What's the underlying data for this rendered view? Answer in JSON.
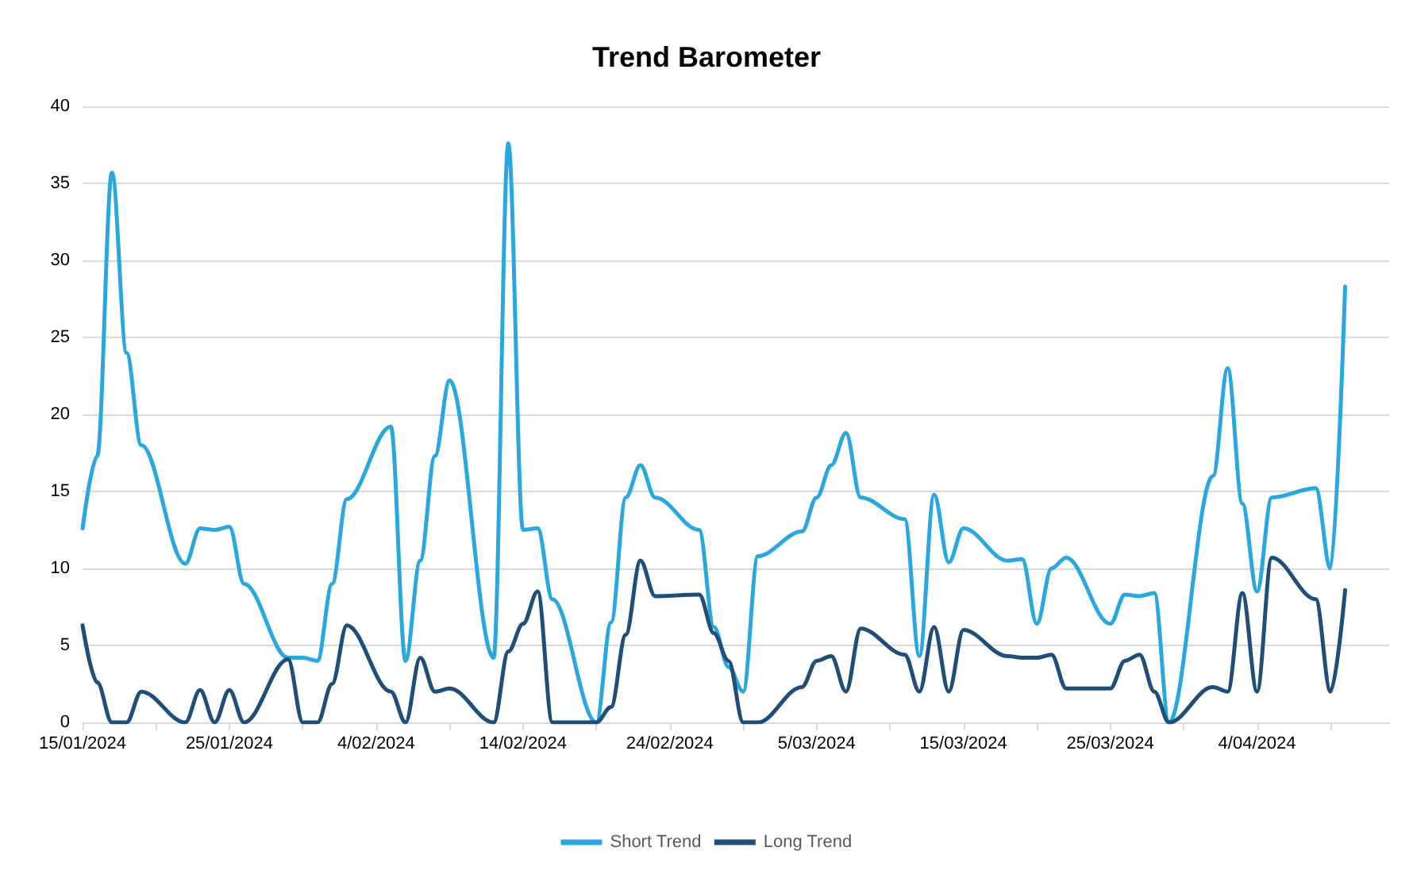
{
  "chart_data": {
    "type": "line",
    "title": "Trend Barometer",
    "x": [
      "2024-01-15",
      "2024-01-16",
      "2024-01-17",
      "2024-01-18",
      "2024-01-19",
      "2024-01-22",
      "2024-01-23",
      "2024-01-24",
      "2024-01-25",
      "2024-01-26",
      "2024-01-29",
      "2024-01-30",
      "2024-01-31",
      "2024-02-01",
      "2024-02-02",
      "2024-02-05",
      "2024-02-06",
      "2024-02-07",
      "2024-02-08",
      "2024-02-09",
      "2024-02-12",
      "2024-02-13",
      "2024-02-14",
      "2024-02-15",
      "2024-02-16",
      "2024-02-19",
      "2024-02-20",
      "2024-02-21",
      "2024-02-22",
      "2024-02-23",
      "2024-02-26",
      "2024-02-27",
      "2024-02-28",
      "2024-02-29",
      "2024-03-01",
      "2024-03-04",
      "2024-03-05",
      "2024-03-06",
      "2024-03-07",
      "2024-03-08",
      "2024-03-11",
      "2024-03-12",
      "2024-03-13",
      "2024-03-14",
      "2024-03-15",
      "2024-03-18",
      "2024-03-19",
      "2024-03-20",
      "2024-03-21",
      "2024-03-22",
      "2024-03-25",
      "2024-03-26",
      "2024-03-27",
      "2024-03-28",
      "2024-03-29",
      "2024-04-01",
      "2024-04-02",
      "2024-04-03",
      "2024-04-04",
      "2024-04-05",
      "2024-04-08",
      "2024-04-09",
      "2024-04-10"
    ],
    "series": [
      {
        "name": "Short Trend",
        "color": "#29a8e0",
        "values": [
          12.6,
          17.3,
          35.7,
          24,
          18,
          10.3,
          12.6,
          12.5,
          12.7,
          9,
          4.2,
          4.2,
          4.0,
          9,
          14.5,
          19.2,
          4.0,
          10.5,
          17.3,
          22.2,
          4.2,
          37.6,
          12.5,
          12.6,
          8,
          0,
          6.5,
          14.6,
          16.7,
          14.6,
          12.5,
          6.2,
          3.6,
          2.0,
          10.8,
          12.4,
          14.6,
          16.7,
          18.8,
          14.6,
          13.2,
          4.3,
          14.8,
          10.4,
          12.6,
          10.5,
          10.6,
          6.4,
          10.0,
          10.7,
          6.4,
          8.3,
          8.2,
          8.4,
          0,
          16,
          23,
          14.2,
          8.5,
          14.6,
          15.2,
          10.0,
          28.3
        ]
      },
      {
        "name": "Long Trend",
        "color": "#1f4e79",
        "values": [
          6.3,
          2.6,
          0,
          0,
          2.0,
          0,
          2.1,
          0,
          2.1,
          0,
          4.1,
          0,
          0,
          2.5,
          6.3,
          2.0,
          0,
          4.2,
          2.0,
          2.2,
          0,
          4.6,
          6.4,
          8.5,
          0,
          0,
          1.0,
          5.7,
          10.5,
          8.2,
          8.3,
          5.8,
          4.0,
          0,
          0,
          2.3,
          4.0,
          4.3,
          2.0,
          6.1,
          4.4,
          2.0,
          6.2,
          2.0,
          6.0,
          4.3,
          4.2,
          4.2,
          4.4,
          2.2,
          2.2,
          4.0,
          4.4,
          2.0,
          0,
          2.3,
          2.0,
          8.4,
          2.0,
          10.7,
          8.0,
          2.0,
          8.6
        ]
      }
    ],
    "xlim": [
      "2024-01-15",
      "2024-04-13"
    ],
    "xticks": [
      {
        "value": "2024-01-15",
        "label": "15/01/2024"
      },
      {
        "value": "2024-01-20",
        "label": null
      },
      {
        "value": "2024-01-25",
        "label": "25/01/2024"
      },
      {
        "value": "2024-01-30",
        "label": null
      },
      {
        "value": "2024-02-04",
        "label": "4/02/2024"
      },
      {
        "value": "2024-02-09",
        "label": null
      },
      {
        "value": "2024-02-14",
        "label": "14/02/2024"
      },
      {
        "value": "2024-02-19",
        "label": null
      },
      {
        "value": "2024-02-24",
        "label": "24/02/2024"
      },
      {
        "value": "2024-02-29",
        "label": null
      },
      {
        "value": "2024-03-05",
        "label": "5/03/2024"
      },
      {
        "value": "2024-03-10",
        "label": null
      },
      {
        "value": "2024-03-15",
        "label": "15/03/2024"
      },
      {
        "value": "2024-03-20",
        "label": null
      },
      {
        "value": "2024-03-25",
        "label": "25/03/2024"
      },
      {
        "value": "2024-03-30",
        "label": null
      },
      {
        "value": "2024-04-04",
        "label": "4/04/2024"
      },
      {
        "value": "2024-04-09",
        "label": null
      }
    ],
    "ylim": [
      0,
      40
    ],
    "yticks": [
      0,
      5,
      10,
      15,
      20,
      25,
      30,
      35,
      40
    ],
    "grid": "y",
    "legend": "bottom",
    "marker": "none",
    "line_style": "solid"
  }
}
